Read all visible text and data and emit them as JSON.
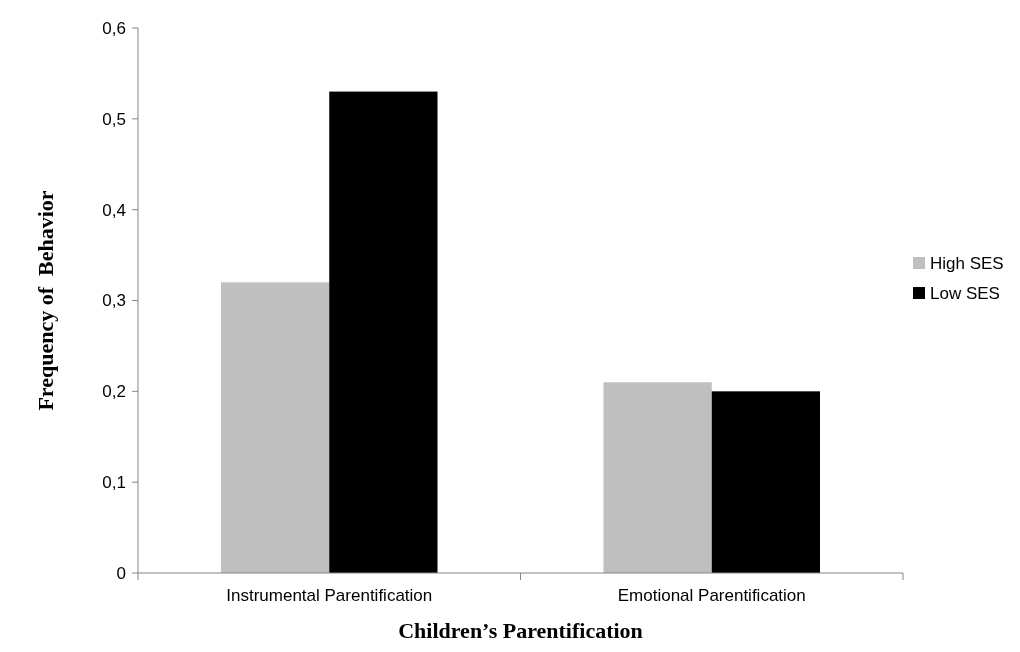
{
  "chart_data": {
    "type": "bar",
    "xlabel": "Children’s Parentification",
    "ylabel": "Frequency of  Behavior",
    "categories": [
      "Instrumental Parentification",
      "Emotional Parentification"
    ],
    "series": [
      {
        "name": "High SES",
        "color": "#bfbfbf",
        "values": [
          0.32,
          0.21
        ]
      },
      {
        "name": "Low SES",
        "color": "#000000",
        "values": [
          0.53,
          0.2
        ]
      }
    ],
    "ylim": [
      0,
      0.6
    ],
    "yticks": [
      0,
      {
        "value": 0.1,
        "label": "0,1"
      },
      {
        "value": 0.2,
        "label": "0,2"
      },
      {
        "value": 0.3,
        "label": "0,3"
      },
      {
        "value": 0.4,
        "label": "0,4"
      },
      {
        "value": 0.5,
        "label": "0,5"
      },
      {
        "value": 0.6,
        "label": "0,6"
      }
    ],
    "grid": false,
    "legend": "right"
  }
}
